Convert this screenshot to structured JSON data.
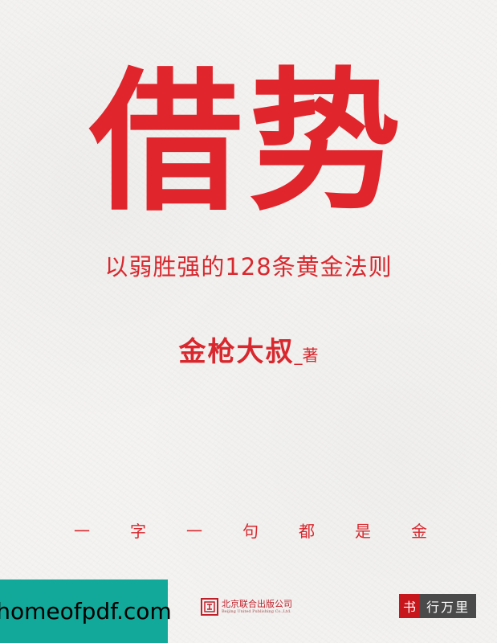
{
  "cover": {
    "title": "借势",
    "subtitle": "以弱胜强的128条黄金法则",
    "author": "金枪大叔",
    "author_mark": "_著",
    "tagline": [
      "一",
      "字",
      "一",
      "句",
      "都",
      "是",
      "金"
    ],
    "colors": {
      "accent_red": "#e0262c",
      "background": "#f4f3f1",
      "watermark_teal": "#12a89a"
    }
  },
  "watermark": {
    "text": "homeofpdf.com"
  },
  "publisher": {
    "logo_icon": "publisher-seal-icon",
    "name": "北京联合出版公司",
    "english_name": "Beijing United Publishing Co.,Ltd."
  },
  "brand": {
    "seal": "书",
    "rest": "行万里"
  }
}
